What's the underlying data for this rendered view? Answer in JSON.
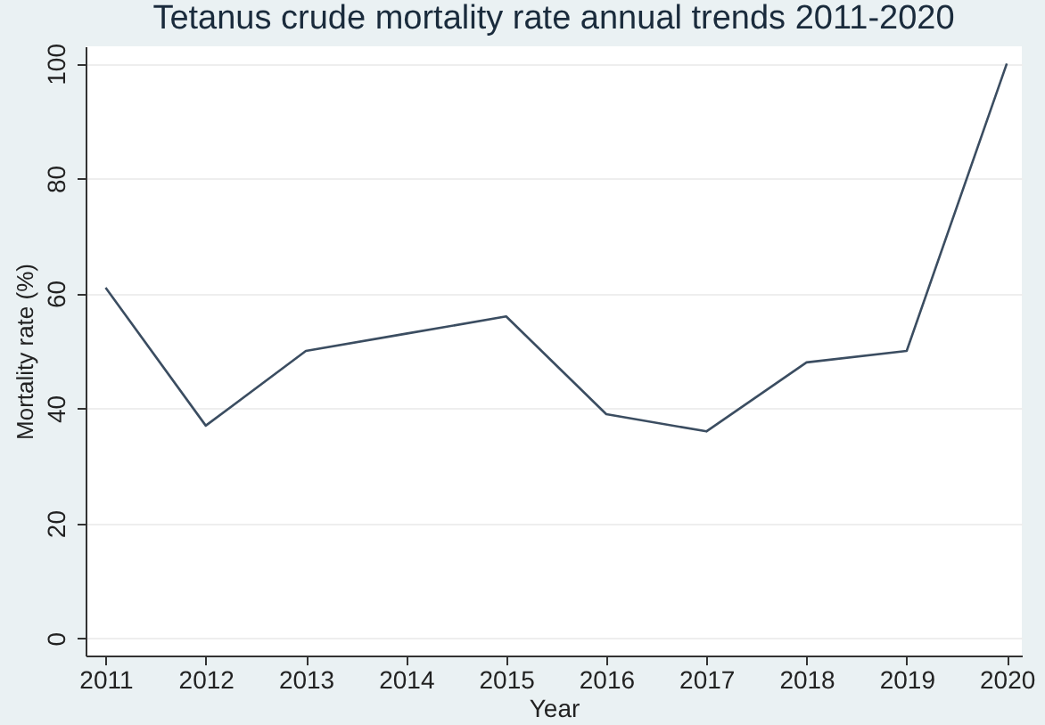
{
  "chart_data": {
    "type": "line",
    "title": "Tetanus crude mortality rate annual trends 2011-2020",
    "xlabel": "Year",
    "ylabel": "Mortality rate (%)",
    "x": [
      2011,
      2012,
      2013,
      2014,
      2015,
      2016,
      2017,
      2018,
      2019,
      2020
    ],
    "series": [
      {
        "color": "#3b4d61",
        "values": [
          61,
          37,
          50,
          53,
          56,
          39,
          36,
          48,
          50,
          100
        ]
      }
    ],
    "xlim": [
      2010.8,
      2020.15
    ],
    "xticks": [
      2011,
      2012,
      2013,
      2014,
      2015,
      2016,
      2017,
      2018,
      2019,
      2020
    ],
    "ylim": [
      -3,
      103
    ],
    "yticks": [
      0,
      20,
      40,
      60,
      80,
      100
    ],
    "grid": "y",
    "line_style": "solid",
    "marker": "none"
  }
}
